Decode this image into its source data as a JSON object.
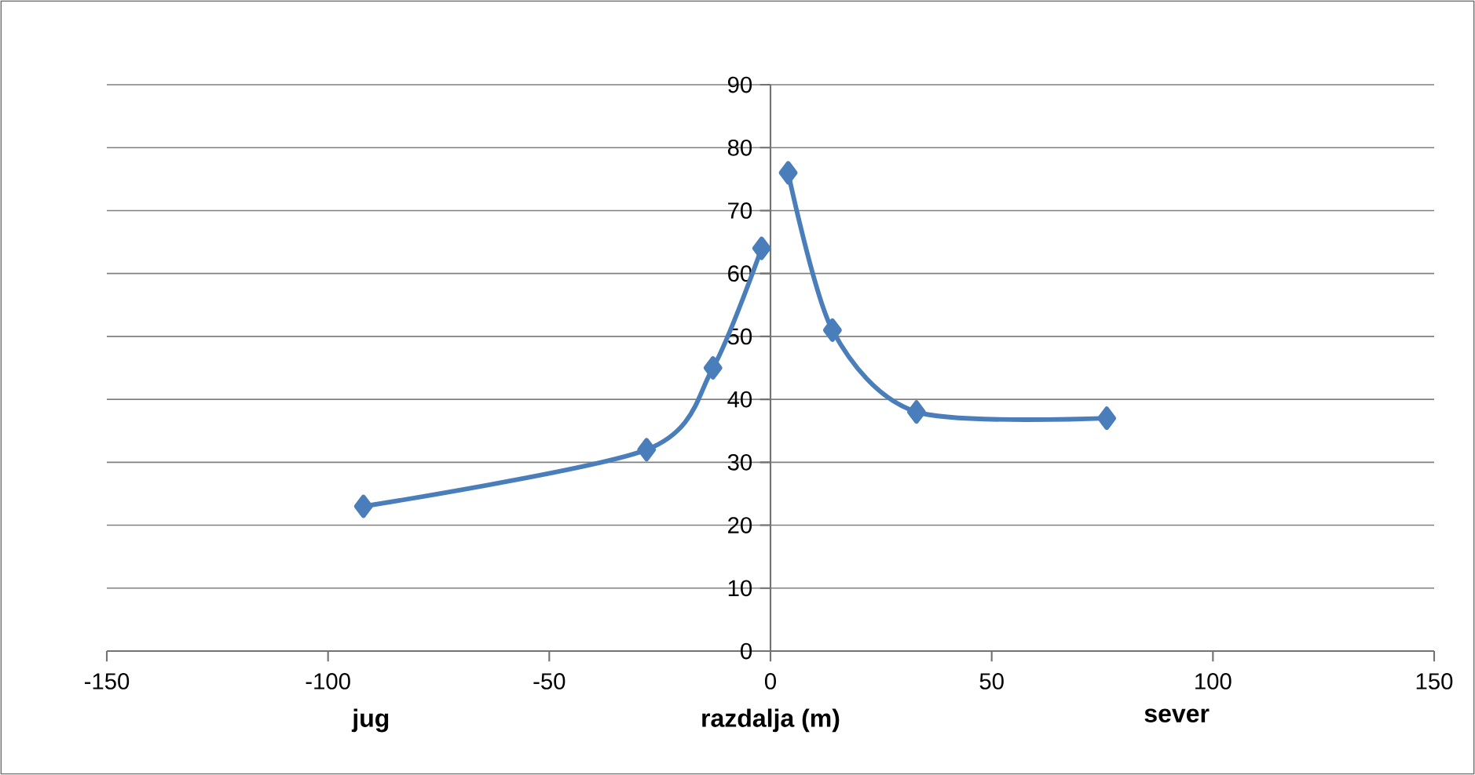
{
  "chart_data": {
    "type": "line",
    "xlabel": "razdalja (m)",
    "annotations": [
      "jug",
      "sever"
    ],
    "series": [
      {
        "color": "#4a7ebb",
        "x": [
          -92,
          -28,
          -13,
          -2
        ],
        "values": [
          23,
          32,
          45,
          64
        ]
      },
      {
        "color": "#4a7ebb",
        "x": [
          4,
          14,
          33,
          76
        ],
        "values": [
          76,
          51,
          38,
          37
        ]
      }
    ],
    "xlim": [
      -150,
      150
    ],
    "xticks": [
      -150,
      -100,
      -50,
      0,
      50,
      100,
      150
    ],
    "ylim": [
      0,
      90
    ],
    "yticks": [
      0,
      10,
      20,
      30,
      40,
      50,
      60,
      70,
      80,
      90
    ],
    "grid": "y",
    "marker": "diamond",
    "line_style": "solid"
  }
}
